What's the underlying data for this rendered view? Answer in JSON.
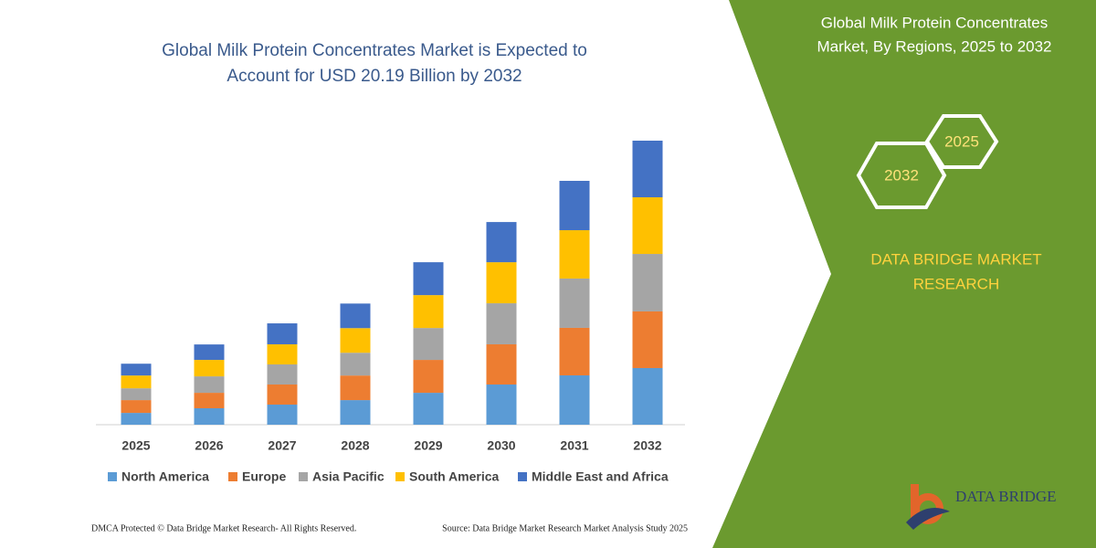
{
  "chart_data": {
    "type": "stacked_bar",
    "title": [
      "Global Milk Protein Concentrates Market is Expected to",
      "Account for USD 20.19 Billion by 2032"
    ],
    "categories": [
      "2025",
      "2026",
      "2027",
      "2028",
      "2029",
      "2030",
      "2031",
      "2032"
    ],
    "series": [
      {
        "name": "North America",
        "color": "#5b9bd5",
        "values": [
          0.84,
          1.17,
          1.43,
          1.75,
          2.27,
          2.86,
          3.51,
          4.03
        ]
      },
      {
        "name": "Europe",
        "color": "#ed7d31",
        "values": [
          0.91,
          1.1,
          1.43,
          1.75,
          2.34,
          2.86,
          3.38,
          4.03
        ]
      },
      {
        "name": "Asia Pacific",
        "color": "#a5a5a5",
        "values": [
          0.84,
          1.17,
          1.43,
          1.62,
          2.27,
          2.92,
          3.51,
          4.09
        ]
      },
      {
        "name": "South America",
        "color": "#ffc000",
        "values": [
          0.91,
          1.17,
          1.43,
          1.75,
          2.34,
          2.92,
          3.44,
          4.03
        ]
      },
      {
        "name": "Middle East and Africa",
        "color": "#4472c4",
        "values": [
          0.84,
          1.1,
          1.49,
          1.75,
          2.34,
          2.86,
          3.51,
          4.03
        ]
      }
    ]
  },
  "side_panel": {
    "title": [
      "Global Milk Protein Concentrates",
      "Market, By Regions, 2025 to 2032"
    ],
    "hexagons": [
      "2025",
      "2032"
    ],
    "brand": [
      "DATA BRIDGE MARKET",
      "RESEARCH"
    ]
  },
  "logo": "DATA BRIDGE",
  "footer": {
    "left": "DMCA Protected © Data Bridge Market Research-  All Rights Reserved.",
    "right": "Source: Data Bridge Market Research  Market Analysis Study 2025"
  }
}
